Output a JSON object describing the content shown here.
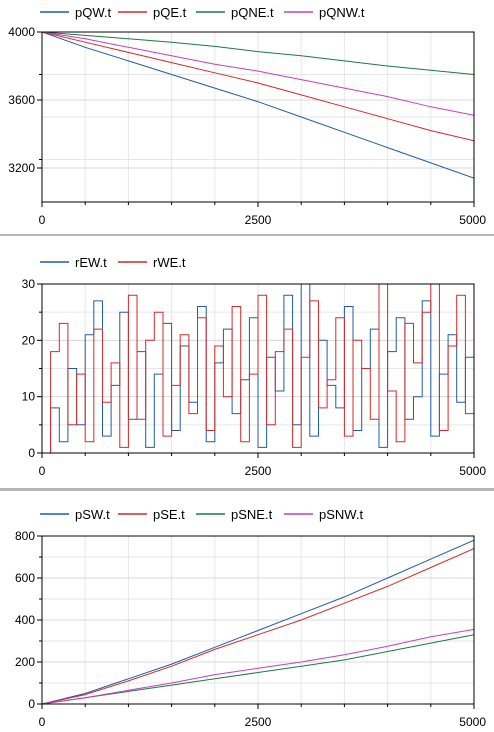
{
  "chart_data": [
    {
      "type": "line",
      "legend_placement": "top",
      "grid": true,
      "xlim": [
        0,
        5000
      ],
      "ylim": [
        3000,
        4000
      ],
      "xticks": [
        0,
        2500,
        5000
      ],
      "xtick_labels": [
        "0",
        "2500",
        "5000"
      ],
      "yticks": [
        3200,
        3600,
        4000
      ],
      "ytick_labels": [
        "3200",
        "3600",
        "4000"
      ],
      "x": [
        0,
        500,
        1000,
        1500,
        2000,
        2500,
        3000,
        3500,
        4000,
        4500,
        5000
      ],
      "series": [
        {
          "name": "pQW.t",
          "color": "#1f5ca8",
          "values": [
            4000,
            3910,
            3830,
            3750,
            3670,
            3590,
            3500,
            3410,
            3320,
            3230,
            3140
          ]
        },
        {
          "name": "pQE.t",
          "color": "#d42a2a",
          "values": [
            4000,
            3940,
            3880,
            3820,
            3760,
            3700,
            3630,
            3560,
            3490,
            3420,
            3360
          ]
        },
        {
          "name": "pQNE.t",
          "color": "#1a7a43",
          "values": [
            4000,
            3980,
            3960,
            3940,
            3915,
            3885,
            3860,
            3830,
            3800,
            3775,
            3750
          ]
        },
        {
          "name": "pQNW.t",
          "color": "#c63ec6",
          "values": [
            4000,
            3960,
            3910,
            3860,
            3810,
            3770,
            3720,
            3670,
            3620,
            3560,
            3510
          ]
        }
      ]
    },
    {
      "type": "line",
      "legend_placement": "top",
      "grid": true,
      "xlim": [
        0,
        5000
      ],
      "ylim": [
        0,
        30
      ],
      "xticks": [
        0,
        2500,
        5000
      ],
      "xtick_labels": [
        "0",
        "2500",
        "5000"
      ],
      "yticks": [
        0,
        10,
        20,
        30
      ],
      "ytick_labels": [
        "0",
        "10",
        "20",
        "30"
      ],
      "x": [
        0,
        100,
        200,
        300,
        400,
        500,
        600,
        700,
        800,
        900,
        1000,
        1100,
        1200,
        1300,
        1400,
        1500,
        1600,
        1700,
        1800,
        1900,
        2000,
        2100,
        2200,
        2300,
        2400,
        2500,
        2600,
        2700,
        2800,
        2900,
        3000,
        3100,
        3200,
        3300,
        3400,
        3500,
        3600,
        3700,
        3800,
        3900,
        4000,
        4100,
        4200,
        4300,
        4400,
        4500,
        4600,
        4700,
        4800,
        4900,
        5000
      ],
      "series": [
        {
          "name": "rEW.t",
          "color": "#1f5ca8",
          "values": [
            0,
            8,
            2,
            15,
            5,
            21,
            27,
            3,
            12,
            25,
            6,
            18,
            1,
            14,
            23,
            4,
            19,
            9,
            26,
            2,
            16,
            22,
            7,
            13,
            24,
            1,
            17,
            11,
            28,
            5,
            30,
            3,
            20,
            12,
            8,
            26,
            4,
            15,
            22,
            1,
            18,
            24,
            6,
            10,
            27,
            3,
            14,
            21,
            9,
            17,
            2
          ]
        },
        {
          "name": "rWE.t",
          "color": "#d42a2a",
          "values": [
            0,
            18,
            23,
            5,
            14,
            2,
            22,
            9,
            16,
            1,
            28,
            6,
            20,
            25,
            3,
            12,
            21,
            7,
            24,
            4,
            19,
            10,
            26,
            2,
            14,
            28,
            5,
            18,
            22,
            1,
            17,
            27,
            8,
            13,
            24,
            3,
            20,
            15,
            6,
            30,
            11,
            2,
            23,
            16,
            25,
            30,
            4,
            19,
            28,
            7,
            5
          ]
        }
      ]
    },
    {
      "type": "line",
      "legend_placement": "top",
      "grid": true,
      "xlim": [
        0,
        5000
      ],
      "ylim": [
        0,
        800
      ],
      "xticks": [
        0,
        2500,
        5000
      ],
      "xtick_labels": [
        "0",
        "2500",
        "5000"
      ],
      "yticks": [
        0,
        200,
        400,
        600,
        800
      ],
      "ytick_labels": [
        "0",
        "200",
        "400",
        "600",
        "800"
      ],
      "x": [
        0,
        500,
        1000,
        1500,
        2000,
        2500,
        3000,
        3500,
        4000,
        4500,
        5000
      ],
      "series": [
        {
          "name": "pSW.t",
          "color": "#1f5ca8",
          "values": [
            0,
            50,
            120,
            190,
            270,
            350,
            430,
            510,
            600,
            690,
            780
          ]
        },
        {
          "name": "pSE.t",
          "color": "#d42a2a",
          "values": [
            0,
            45,
            110,
            180,
            260,
            330,
            400,
            480,
            560,
            650,
            740
          ]
        },
        {
          "name": "pSNE.t",
          "color": "#1a7a43",
          "values": [
            0,
            30,
            60,
            90,
            120,
            150,
            180,
            210,
            250,
            290,
            330
          ]
        },
        {
          "name": "pSNW.t",
          "color": "#c63ec6",
          "values": [
            0,
            30,
            65,
            100,
            140,
            170,
            200,
            235,
            275,
            320,
            355
          ]
        }
      ]
    }
  ]
}
